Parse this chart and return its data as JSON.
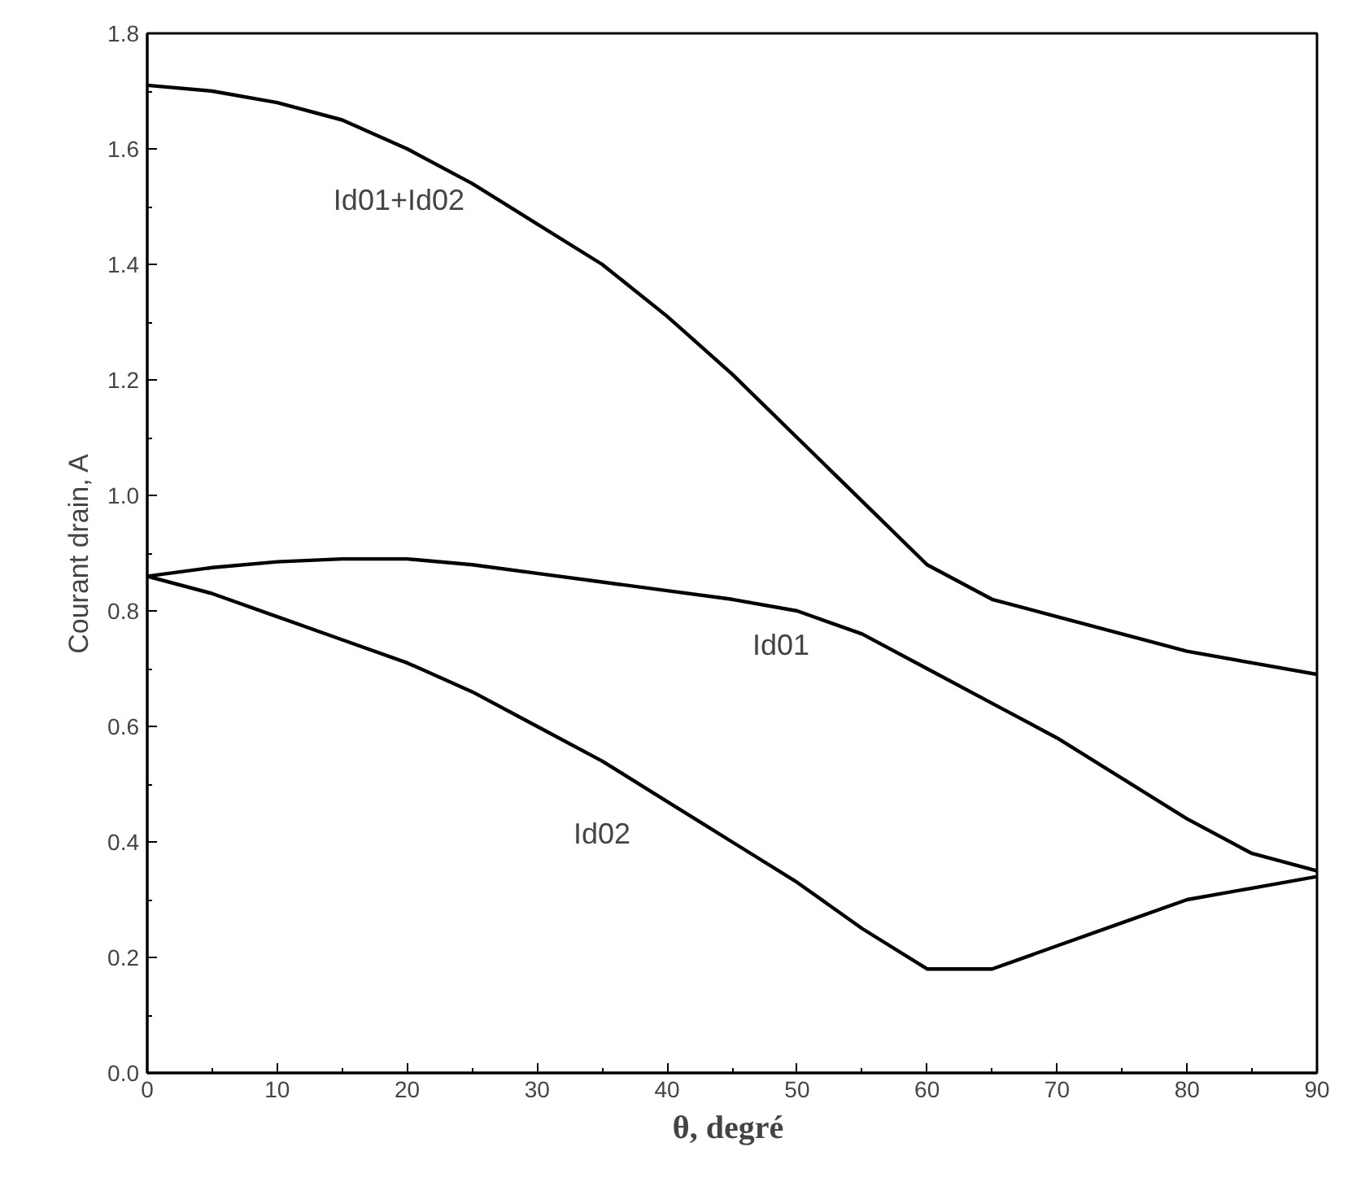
{
  "chart_data": {
    "type": "line",
    "xlabel": "θ,  degré",
    "ylabel": "Courant drain, A",
    "x": [
      0,
      5,
      10,
      15,
      20,
      25,
      30,
      35,
      40,
      45,
      50,
      55,
      60,
      65,
      70,
      75,
      80,
      85,
      90
    ],
    "series": [
      {
        "name": "Id01+Id02",
        "color": "#000000",
        "values": [
          1.71,
          1.7,
          1.68,
          1.65,
          1.6,
          1.54,
          1.47,
          1.4,
          1.31,
          1.21,
          1.1,
          0.99,
          0.88,
          0.82,
          0.79,
          0.76,
          0.73,
          0.71,
          0.69
        ]
      },
      {
        "name": "Id01",
        "color": "#000000",
        "values": [
          0.86,
          0.875,
          0.885,
          0.89,
          0.89,
          0.88,
          0.865,
          0.85,
          0.835,
          0.82,
          0.8,
          0.76,
          0.7,
          0.64,
          0.58,
          0.51,
          0.44,
          0.38,
          0.35
        ]
      },
      {
        "name": "Id02",
        "color": "#000000",
        "values": [
          0.86,
          0.83,
          0.79,
          0.75,
          0.71,
          0.66,
          0.6,
          0.54,
          0.47,
          0.4,
          0.33,
          0.25,
          0.18,
          0.18,
          0.22,
          0.26,
          0.3,
          0.32,
          0.34
        ]
      }
    ],
    "xlim": [
      0,
      90
    ],
    "ylim": [
      0,
      1.8
    ],
    "xticks": [
      0,
      10,
      20,
      30,
      40,
      50,
      60,
      70,
      80,
      90
    ],
    "yticks": [
      {
        "value": 0,
        "label": "0.0"
      },
      {
        "value": 0.2,
        "label": "0.2"
      },
      {
        "value": 0.4,
        "label": "0.4"
      },
      {
        "value": 0.6,
        "label": "0.6"
      },
      {
        "value": 0.8,
        "label": "0.8"
      },
      {
        "value": 1.0,
        "label": "1.0"
      },
      {
        "value": 1.2,
        "label": "1.2"
      },
      {
        "value": 1.4,
        "label": "1.4"
      },
      {
        "value": 1.6,
        "label": "1.6"
      },
      {
        "value": 1.8,
        "label": "1.8"
      }
    ],
    "grid": false,
    "legend": false,
    "marker": "none",
    "line_style": "solid"
  }
}
